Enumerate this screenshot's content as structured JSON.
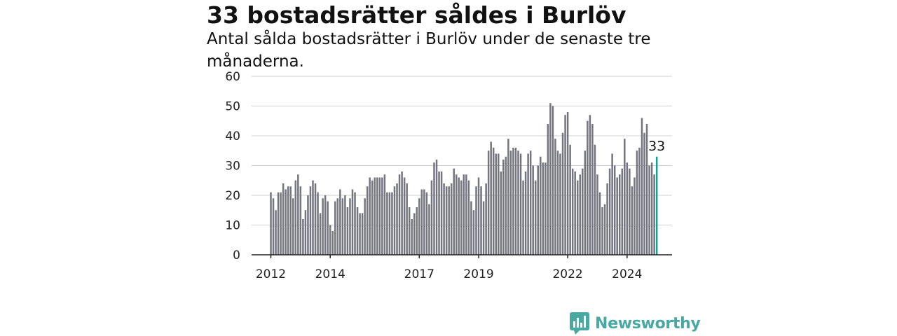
{
  "header": {
    "title": "33 bostadsrätter såldes i Burlöv",
    "subtitle": "Antal sålda bostadsrätter i Burlöv under de senaste tre månaderna."
  },
  "brand": {
    "name": "Newsworthy",
    "icon": "newsworthy-chart-icon",
    "color": "#4aa8a3"
  },
  "chart_data": {
    "type": "bar",
    "title": "33 bostadsrätter såldes i Burlöv",
    "subtitle": "Antal sålda bostadsrätter i Burlöv under de senaste tre månaderna.",
    "ylim": [
      0,
      60
    ],
    "yticks": [
      0,
      10,
      20,
      30,
      40,
      50,
      60
    ],
    "xticks": [
      "2012",
      "2014",
      "2017",
      "2019",
      "2022",
      "2024"
    ],
    "grid": true,
    "x_start": "2012-01",
    "bar_color": "#75757f",
    "highlight_color": "#149f98",
    "highlight_label": "33",
    "values": [
      21,
      19,
      15,
      21,
      21,
      24,
      22,
      23,
      23,
      19,
      25,
      27,
      23,
      12,
      15,
      20,
      23,
      25,
      24,
      21,
      14,
      19,
      20,
      18,
      10,
      8,
      18,
      19,
      22,
      19,
      20,
      16,
      19,
      22,
      21,
      16,
      14,
      14,
      19,
      23,
      26,
      25,
      26,
      26,
      26,
      26,
      27,
      21,
      21,
      21,
      23,
      24,
      27,
      28,
      26,
      24,
      16,
      12,
      14,
      16,
      19,
      22,
      22,
      21,
      17,
      25,
      31,
      32,
      28,
      28,
      24,
      23,
      23,
      24,
      29,
      27,
      26,
      25,
      27,
      27,
      25,
      18,
      15,
      23,
      26,
      23,
      18,
      24,
      35,
      38,
      36,
      34,
      34,
      28,
      32,
      33,
      39,
      35,
      36,
      36,
      35,
      34,
      25,
      28,
      34,
      35,
      30,
      25,
      30,
      33,
      31,
      31,
      44,
      51,
      50,
      39,
      35,
      34,
      41,
      47,
      48,
      37,
      29,
      28,
      25,
      27,
      29,
      35,
      45,
      47,
      44,
      37,
      27,
      21,
      16,
      17,
      24,
      29,
      34,
      30,
      26,
      27,
      29,
      39,
      31,
      29,
      23,
      26,
      35,
      36,
      46,
      41,
      44,
      30,
      31,
      27,
      33
    ]
  }
}
